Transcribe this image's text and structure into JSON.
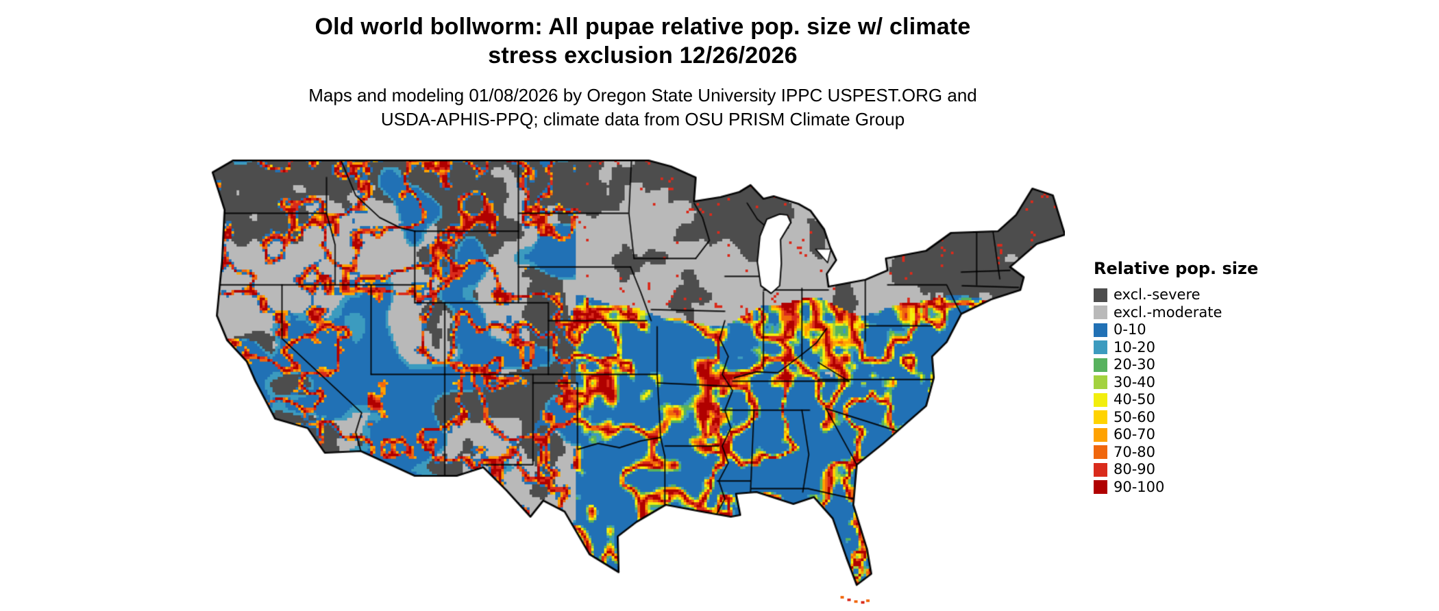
{
  "page": {
    "background": "#ffffff"
  },
  "title": {
    "line1": "Old world bollworm: All pupae relative pop. size w/ climate",
    "line2": "stress exclusion 12/26/2026"
  },
  "subtitle": {
    "line1": "Maps and modeling 01/08/2026 by Oregon State University IPPC USPEST.ORG and",
    "line2": "USDA-APHIS-PPQ; climate data from OSU PRISM Climate Group"
  },
  "map": {
    "depicts": "Contiguous United States raster map of old world bollworm all-pupae relative population size with climate stress exclusion zones and black state boundaries",
    "water_color": "#ffffff",
    "boundary_color": "#000000"
  },
  "legend": {
    "title": "Relative pop. size",
    "items": [
      {
        "label": "excl.-severe",
        "color": "#4d4d4d"
      },
      {
        "label": "excl.-moderate",
        "color": "#b9b9b9"
      },
      {
        "label": "0-10",
        "color": "#2171b5"
      },
      {
        "label": "10-20",
        "color": "#3c9bbf"
      },
      {
        "label": "20-30",
        "color": "#57b25e"
      },
      {
        "label": "30-40",
        "color": "#a3d23f"
      },
      {
        "label": "40-50",
        "color": "#f2ee0e"
      },
      {
        "label": "50-60",
        "color": "#ffd300"
      },
      {
        "label": "60-70",
        "color": "#ffa200"
      },
      {
        "label": "70-80",
        "color": "#f0670d"
      },
      {
        "label": "80-90",
        "color": "#d92b1c"
      },
      {
        "label": "90-100",
        "color": "#b00000"
      }
    ]
  }
}
